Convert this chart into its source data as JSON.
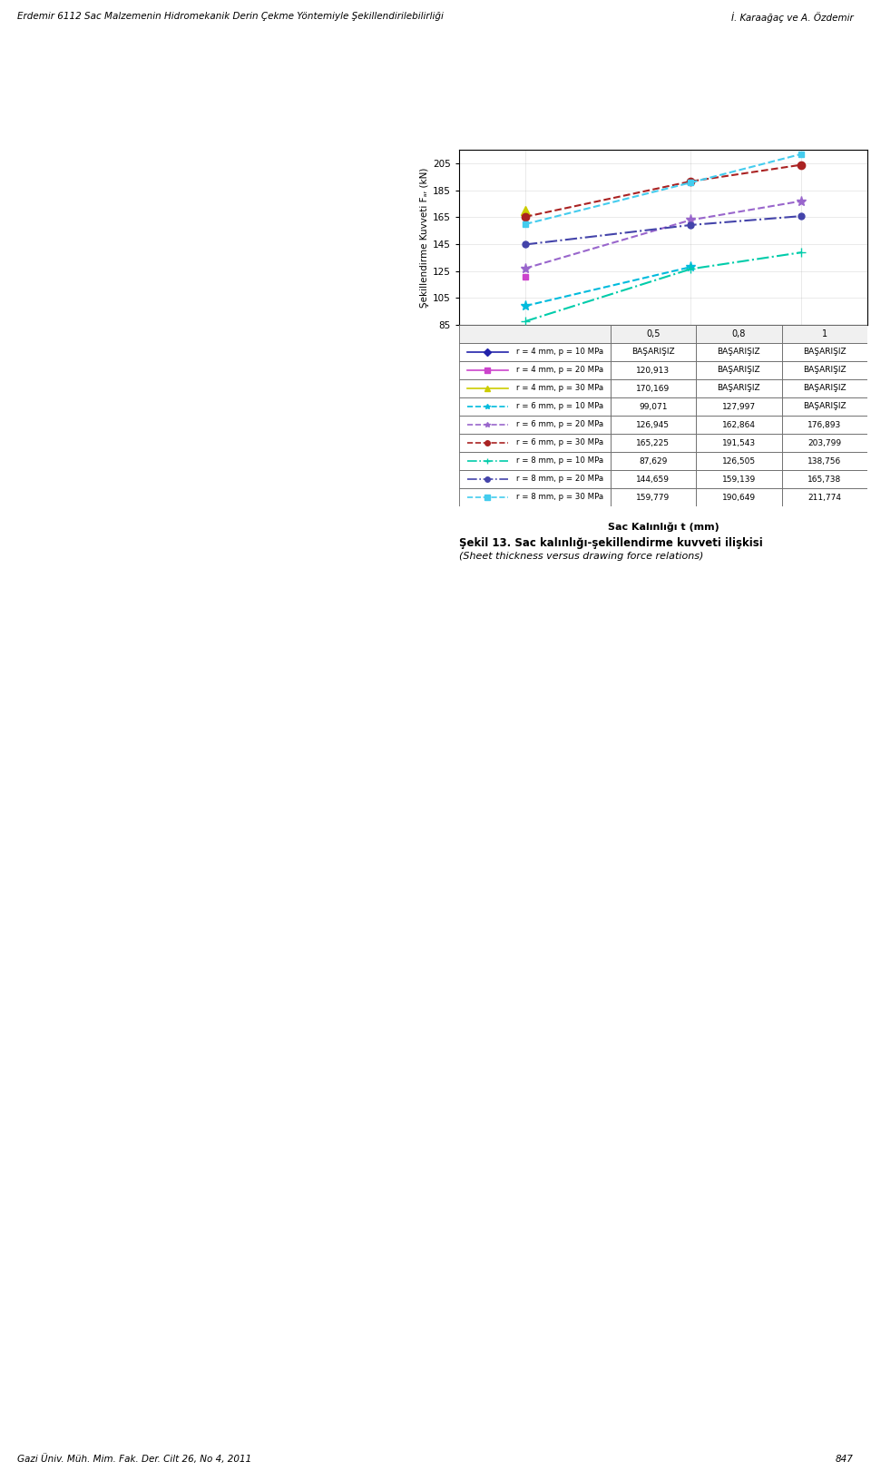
{
  "ylabel": "Şekillendirme Kuvveti Fₐᵣ (kN)",
  "xlabel": "Sac Kalınlığı t (mm)",
  "x_values": [
    0.5,
    0.8,
    1.0
  ],
  "x_tick_labels": [
    "0,5",
    "0,8",
    "1"
  ],
  "ylim": [
    85,
    215
  ],
  "yticks": [
    85,
    105,
    125,
    145,
    165,
    185,
    205
  ],
  "series": [
    {
      "label": "r = 4 mm, p = 10 MPa",
      "values": [
        null,
        null,
        null
      ],
      "color": "#2222AA",
      "marker": "D",
      "markersize": 5,
      "linestyle": "-",
      "linewidth": 1.5
    },
    {
      "label": "r = 4 mm, p = 20 MPa",
      "values": [
        120.913,
        null,
        null
      ],
      "color": "#CC44CC",
      "marker": "s",
      "markersize": 5,
      "linestyle": "-",
      "linewidth": 1.5
    },
    {
      "label": "r = 4 mm, p = 30 MPa",
      "values": [
        170.169,
        null,
        null
      ],
      "color": "#CCCC00",
      "marker": "^",
      "markersize": 7,
      "linestyle": "-",
      "linewidth": 1.5
    },
    {
      "label": "r = 6 mm, p = 10 MPa",
      "values": [
        99.071,
        127.997,
        null
      ],
      "color": "#00BBDD",
      "marker": "*",
      "markersize": 8,
      "linestyle": "--",
      "linewidth": 1.5
    },
    {
      "label": "r = 6 mm, p = 20 MPa",
      "values": [
        126.945,
        162.864,
        176.893
      ],
      "color": "#9966CC",
      "marker": "*",
      "markersize": 8,
      "linestyle": "--",
      "linewidth": 1.5
    },
    {
      "label": "r = 6 mm, p = 30 MPa",
      "values": [
        165.225,
        191.543,
        203.799
      ],
      "color": "#AA2222",
      "marker": "o",
      "markersize": 6,
      "linestyle": "--",
      "linewidth": 1.5
    },
    {
      "label": "r = 8 mm, p = 10 MPa",
      "values": [
        87.629,
        126.505,
        138.756
      ],
      "color": "#00CCAA",
      "marker": "+",
      "markersize": 7,
      "linestyle": "-.",
      "linewidth": 1.5
    },
    {
      "label": "r = 8 mm, p = 20 MPa",
      "values": [
        144.659,
        159.139,
        165.738
      ],
      "color": "#4444AA",
      "marker": "o",
      "markersize": 5,
      "linestyle": "-.",
      "linewidth": 1.5
    },
    {
      "label": "r = 8 mm, p = 30 MPa",
      "values": [
        159.779,
        190.649,
        211.774
      ],
      "color": "#44CCEE",
      "marker": "s",
      "markersize": 5,
      "linestyle": "--",
      "linewidth": 1.5
    }
  ],
  "table_rows": [
    [
      "r = 4 mm, p = 10 MPa",
      "BAŞARIŞIZ",
      "BAŞARIŞIZ",
      "BAŞARIŞIZ"
    ],
    [
      "r = 4 mm, p = 20 MPa",
      "120,913",
      "BAŞARIŞIZ",
      "BAŞARIŞIZ"
    ],
    [
      "r = 4 mm, p = 30 MPa",
      "170,169",
      "BAŞARIŞIZ",
      "BAŞARIŞIZ"
    ],
    [
      "r = 6 mm, p = 10 MPa",
      "99,071",
      "127,997",
      "BAŞARIŞIZ"
    ],
    [
      "r = 6 mm, p = 20 MPa",
      "126,945",
      "162,864",
      "176,893"
    ],
    [
      "r = 6 mm, p = 30 MPa",
      "165,225",
      "191,543",
      "203,799"
    ],
    [
      "r = 8 mm, p = 10 MPa",
      "87,629",
      "126,505",
      "138,756"
    ],
    [
      "r = 8 mm, p = 20 MPa",
      "144,659",
      "159,139",
      "165,738"
    ],
    [
      "r = 8 mm, p = 30 MPa",
      "159,779",
      "190,649",
      "211,774"
    ]
  ],
  "table_col_headers": [
    "0,5",
    "0,8",
    "1"
  ],
  "caption_bold": "Şekil 13.",
  "caption_text": " Sac kalınlığı-şekillendirme kuvveti ilişkisi",
  "caption_italic": "(Sheet thickness versus drawing force relations)",
  "page_bg": "#FFFFFF",
  "chart_border_color": "#AAAAAA",
  "table_border_color": "#666666",
  "header_text_1": "Erdemir 6112 Sac Malzemenin Hidromekanik Derin Çekme Yöntemiyle Şekillendirilebilirliği",
  "header_text_2": "İ. Karaağaç ve A. Özdemir",
  "footer_text": "Gazi Üniv. Müh. Mim. Fak. Der. Cilt 26, No 4, 2011",
  "footer_page": "847"
}
